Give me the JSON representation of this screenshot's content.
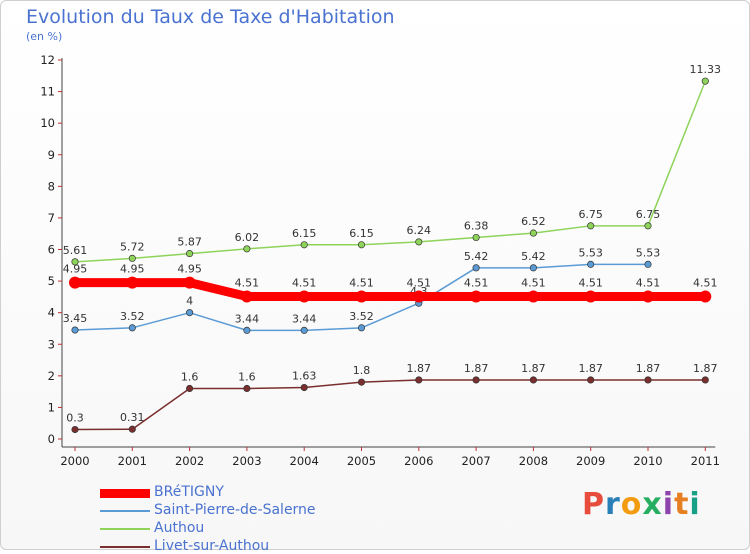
{
  "chart_data": {
    "type": "line",
    "title": "Evolution du Taux de Taxe d'Habitation",
    "subtitle": "(en %)",
    "xlabel": "",
    "ylabel": "",
    "ylim": [
      0,
      12
    ],
    "yticks": [
      0,
      1,
      2,
      3,
      4,
      5,
      6,
      7,
      8,
      9,
      10,
      11,
      12
    ],
    "categories": [
      "2000",
      "2001",
      "2002",
      "2003",
      "2004",
      "2005",
      "2006",
      "2007",
      "2008",
      "2009",
      "2010",
      "2011"
    ],
    "grid": false,
    "legend_position": "bottom-left",
    "series": [
      {
        "name": "BRéTIGNY",
        "color": "#ff0000",
        "values": [
          4.95,
          4.95,
          4.95,
          4.51,
          4.51,
          4.51,
          4.51,
          4.51,
          4.51,
          4.51,
          4.51,
          4.51
        ],
        "labels": [
          "4.95",
          "4.95",
          "4.95",
          "4.51",
          "4.51",
          "4.51",
          "4.51",
          "4.51",
          "4.51",
          "4.51",
          "4.51",
          "4.51"
        ]
      },
      {
        "name": "Saint-Pierre-de-Salerne",
        "color": "#5b9bd5",
        "values": [
          3.45,
          3.52,
          4,
          3.44,
          3.44,
          3.52,
          4.3,
          5.42,
          5.42,
          5.53,
          5.53,
          null
        ],
        "labels": [
          "3.45",
          "3.52",
          "4",
          "3.44",
          "3.44",
          "3.52",
          "4.3",
          "5.42",
          "5.42",
          "5.53",
          "5.53",
          ""
        ]
      },
      {
        "name": "Authou",
        "color": "#8ed35a",
        "values": [
          5.61,
          5.72,
          5.87,
          6.02,
          6.15,
          6.15,
          6.24,
          6.38,
          6.52,
          6.75,
          6.75,
          11.33
        ],
        "labels": [
          "5.61",
          "5.72",
          "5.87",
          "6.02",
          "6.15",
          "6.15",
          "6.24",
          "6.38",
          "6.52",
          "6.75",
          "6.75",
          "11.33"
        ]
      },
      {
        "name": "Livet-sur-Authou",
        "color": "#7a2e2e",
        "values": [
          0.3,
          0.31,
          1.6,
          1.6,
          1.63,
          1.8,
          1.87,
          1.87,
          1.87,
          1.87,
          1.87,
          1.87
        ],
        "labels": [
          "0.3",
          "0.31",
          "1.6",
          "1.6",
          "1.63",
          "1.8",
          "1.87",
          "1.87",
          "1.87",
          "1.87",
          "1.87",
          "1.87"
        ]
      }
    ]
  },
  "logo": {
    "text": "Proxiti",
    "colors": [
      "#e74c3c",
      "#2980b9",
      "#f39c12",
      "#27ae60",
      "#8e44ad",
      "#e67e22",
      "#16a085"
    ]
  }
}
